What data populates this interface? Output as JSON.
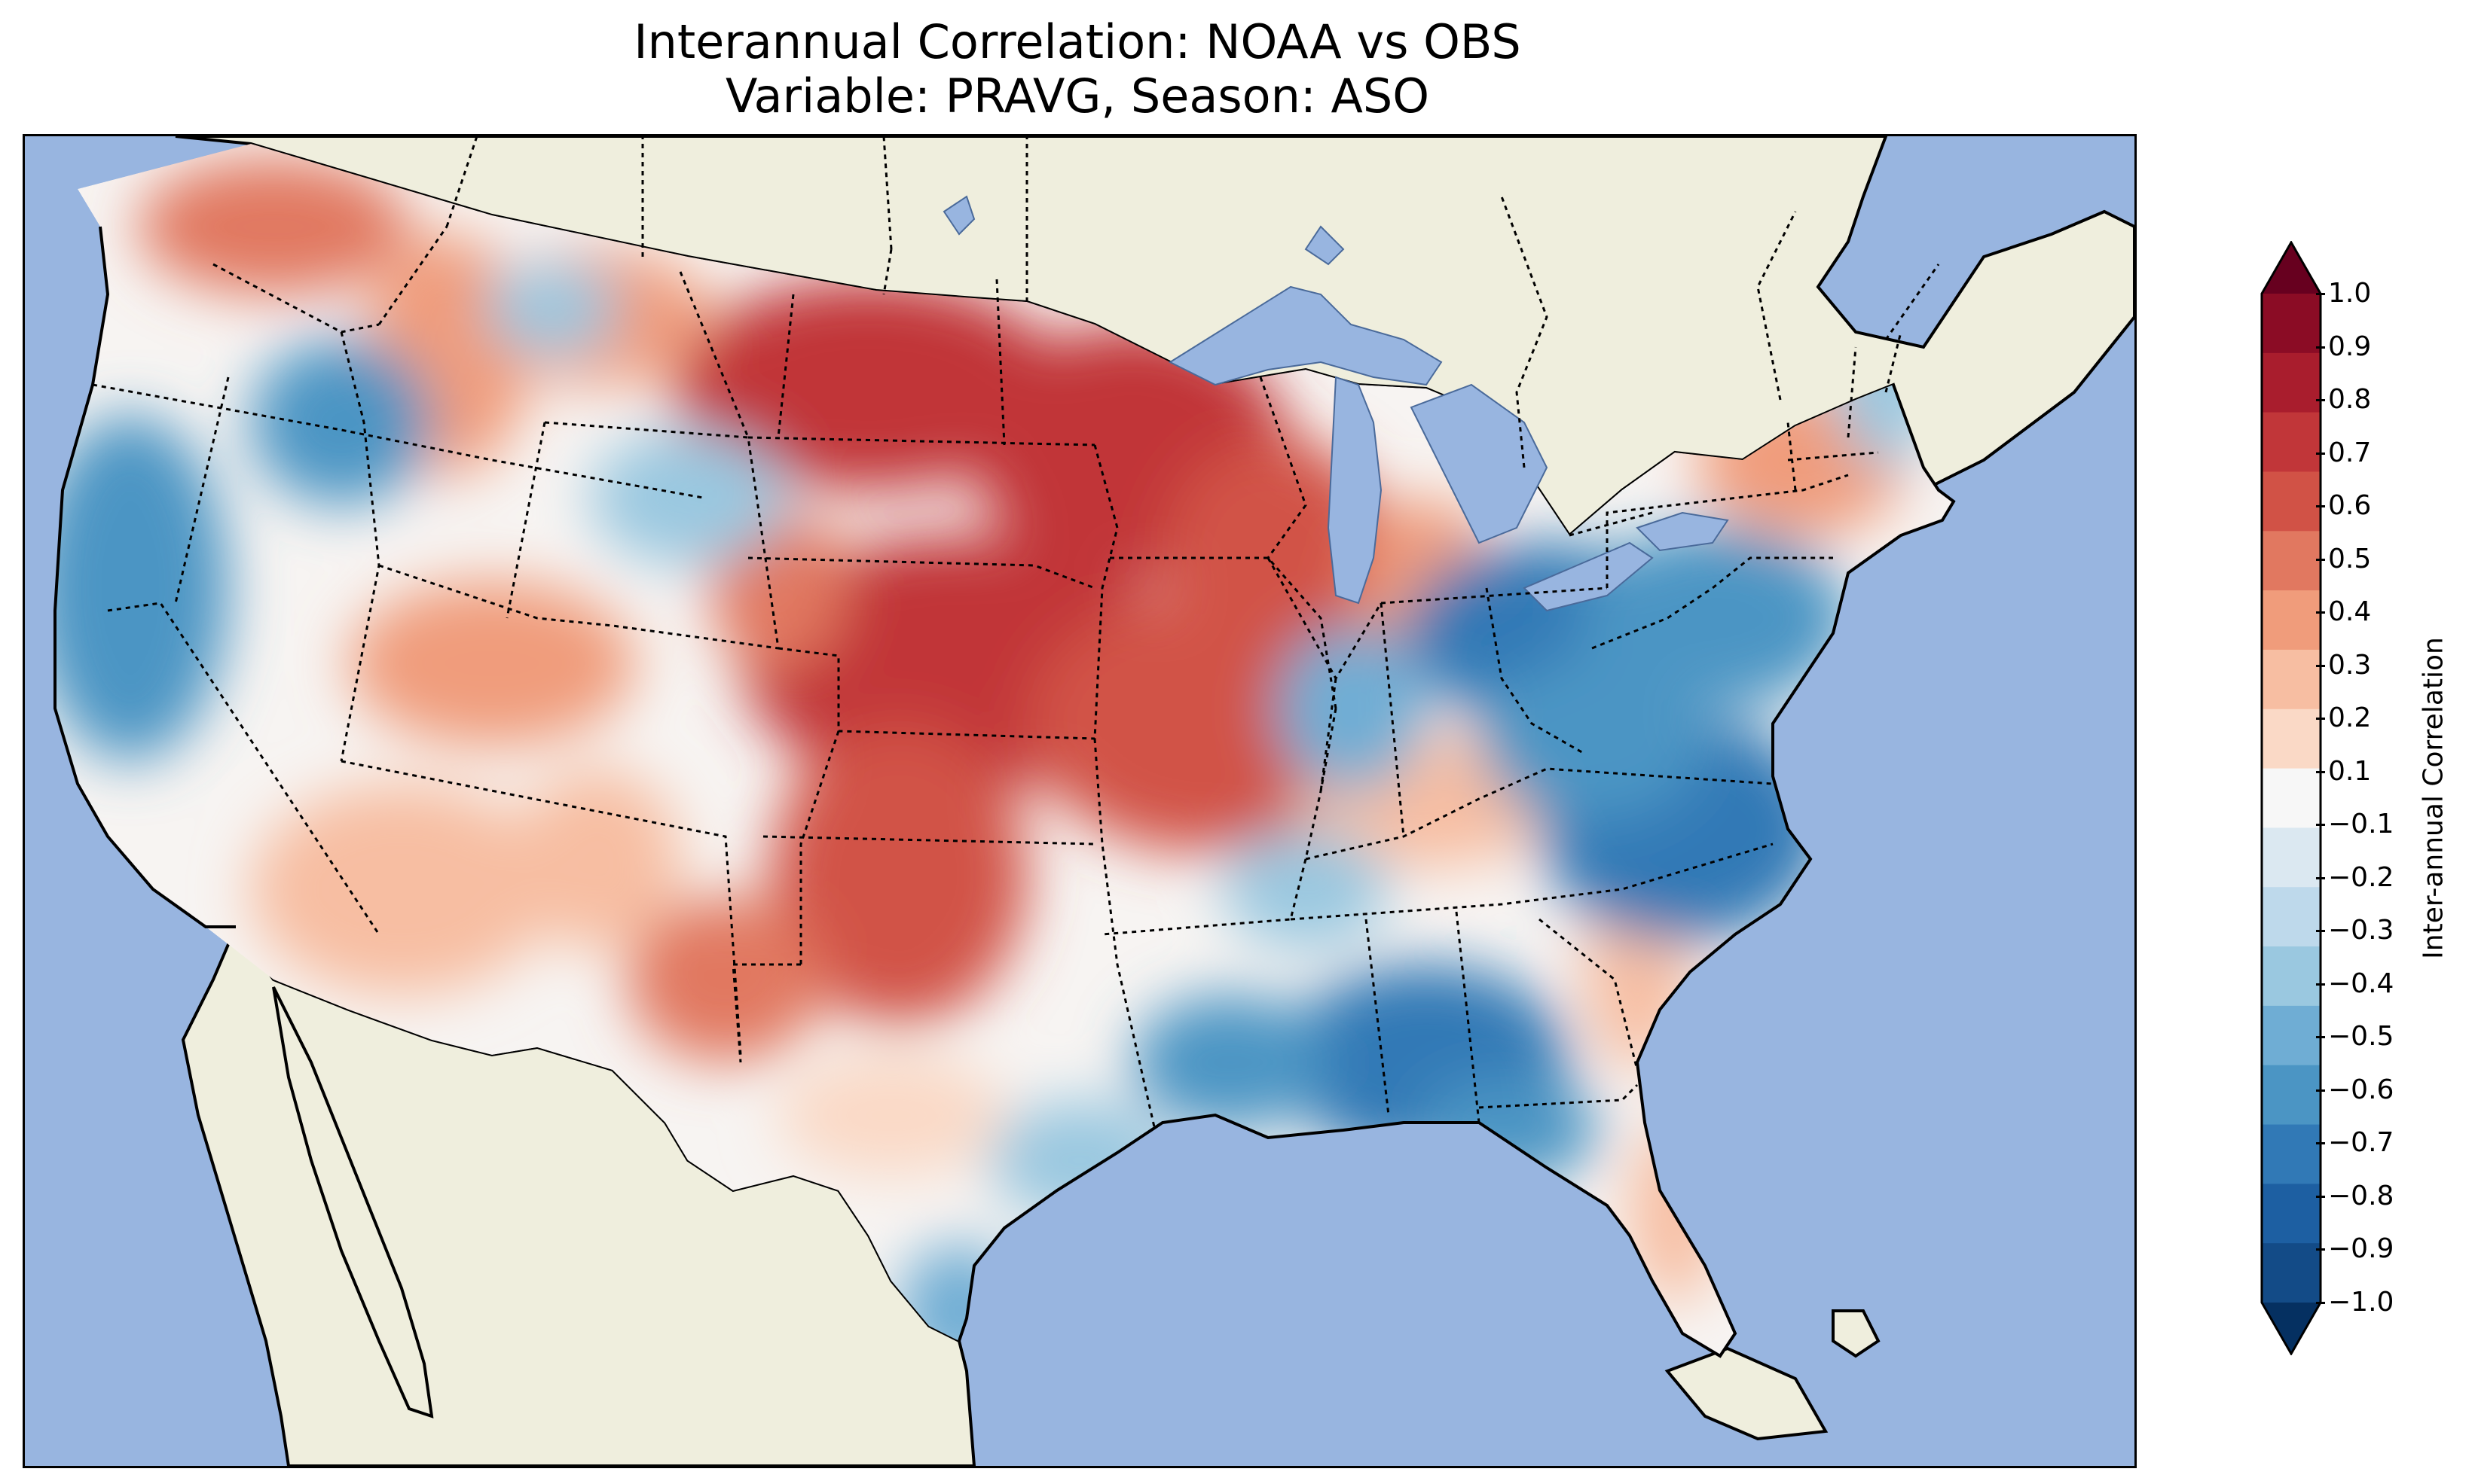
{
  "title": {
    "line1": "Interannual Correlation: NOAA vs OBS",
    "line2": "Variable: PRAVG, Season: ASO"
  },
  "colors": {
    "ocean": "#98b5e0",
    "land": "#efeedd",
    "border": "#000000"
  },
  "colorbar": {
    "label": "Inter-annual Correlation",
    "ticks": [
      "1.0",
      "0.9",
      "0.8",
      "0.7",
      "0.6",
      "0.5",
      "0.4",
      "0.3",
      "0.2",
      "0.1",
      "−0.1",
      "−0.2",
      "−0.3",
      "−0.4",
      "−0.5",
      "−0.6",
      "−0.7",
      "−0.8",
      "−0.9",
      "−1.0"
    ],
    "colors": [
      "#67001f",
      "#8b0c25",
      "#a91d2d",
      "#c13639",
      "#d15246",
      "#e17860",
      "#f09c7b",
      "#f7bea2",
      "#fad9c6",
      "#f7f7f7",
      "#dbe8f1",
      "#bed9eb",
      "#9ac8e0",
      "#6fadd4",
      "#4b95c4",
      "#3179b6",
      "#1d5fa2",
      "#134b87",
      "#053061"
    ]
  },
  "map": {
    "projection": "Lambert Conformal",
    "region": "Contiguous United States",
    "features": [
      "coastlines",
      "state-borders",
      "country-borders",
      "lakes"
    ]
  }
}
